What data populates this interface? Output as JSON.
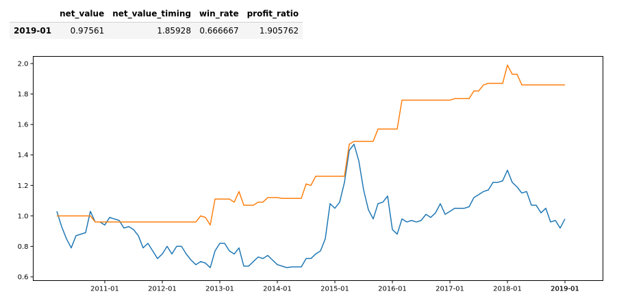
{
  "table": {
    "columns": [
      "",
      "net_value",
      "net_value_timing",
      "win_rate",
      "profit_ratio"
    ],
    "rows": [
      {
        "index": "2019-01",
        "net_value": "0.97561",
        "net_value_timing": "1.85928",
        "win_rate": "0.666667",
        "profit_ratio": "1.905762"
      }
    ]
  },
  "chart_data": {
    "type": "line",
    "x_axis_type": "month",
    "x_start": "2010-03",
    "ylim": [
      0.6,
      2.0
    ],
    "y_ticks": [
      0.6,
      0.8,
      1.0,
      1.2,
      1.4,
      1.6,
      1.8,
      2.0
    ],
    "x_ticks": [
      "2011-01",
      "2012-01",
      "2013-01",
      "2014-01",
      "2015-01",
      "2016-01",
      "2017-01",
      "2018-01",
      "2019-01",
      "2019-01",
      "2019-01"
    ],
    "colors": [
      "#1f77b4",
      "#ff7f0e"
    ],
    "grid": false,
    "series": [
      {
        "values": [
          1.03,
          0.93,
          0.85,
          0.79,
          0.87,
          0.88,
          0.89,
          1.03,
          0.96,
          0.96,
          0.94,
          0.99,
          0.98,
          0.97,
          0.92,
          0.93,
          0.91,
          0.87,
          0.79,
          0.82,
          0.77,
          0.72,
          0.75,
          0.8,
          0.75,
          0.8,
          0.8,
          0.75,
          0.71,
          0.68,
          0.7,
          0.69,
          0.66,
          0.77,
          0.82,
          0.82,
          0.77,
          0.75,
          0.79,
          0.67,
          0.67,
          0.7,
          0.73,
          0.72,
          0.74,
          0.71,
          0.68,
          0.67,
          0.66,
          0.665,
          0.665,
          0.665,
          0.72,
          0.72,
          0.75,
          0.77,
          0.85,
          1.08,
          1.05,
          1.09,
          1.22,
          1.43,
          1.47,
          1.36,
          1.17,
          1.04,
          0.98,
          1.08,
          1.09,
          1.13,
          0.91,
          0.88,
          0.98,
          0.96,
          0.97,
          0.96,
          0.97,
          1.01,
          0.99,
          1.02,
          1.08,
          1.01,
          1.03,
          1.05,
          1.05,
          1.05,
          1.06,
          1.12,
          1.14,
          1.16,
          1.17,
          1.22,
          1.22,
          1.23,
          1.3,
          1.22,
          1.19,
          1.15,
          1.16,
          1.07,
          1.07,
          1.02,
          1.05,
          0.96,
          0.97,
          0.92,
          0.98
        ]
      },
      {
        "values": [
          1.0,
          1.0,
          1.0,
          1.0,
          1.0,
          1.0,
          1.0,
          1.0,
          0.96,
          0.96,
          0.96,
          0.96,
          0.96,
          0.96,
          0.96,
          0.96,
          0.96,
          0.96,
          0.96,
          0.96,
          0.96,
          0.96,
          0.96,
          0.96,
          0.96,
          0.96,
          0.96,
          0.96,
          0.96,
          0.96,
          1.0,
          0.99,
          0.94,
          1.11,
          1.11,
          1.11,
          1.11,
          1.09,
          1.16,
          1.07,
          1.07,
          1.07,
          1.09,
          1.09,
          1.12,
          1.12,
          1.12,
          1.115,
          1.115,
          1.115,
          1.115,
          1.115,
          1.21,
          1.2,
          1.26,
          1.26,
          1.26,
          1.26,
          1.26,
          1.26,
          1.26,
          1.47,
          1.49,
          1.49,
          1.49,
          1.49,
          1.49,
          1.57,
          1.57,
          1.57,
          1.57,
          1.57,
          1.76,
          1.76,
          1.76,
          1.76,
          1.76,
          1.76,
          1.76,
          1.76,
          1.76,
          1.76,
          1.76,
          1.77,
          1.77,
          1.77,
          1.77,
          1.82,
          1.82,
          1.86,
          1.87,
          1.87,
          1.87,
          1.87,
          1.99,
          1.93,
          1.93,
          1.86,
          1.86,
          1.86,
          1.86,
          1.86,
          1.86,
          1.86,
          1.86,
          1.86,
          1.86
        ]
      }
    ]
  }
}
